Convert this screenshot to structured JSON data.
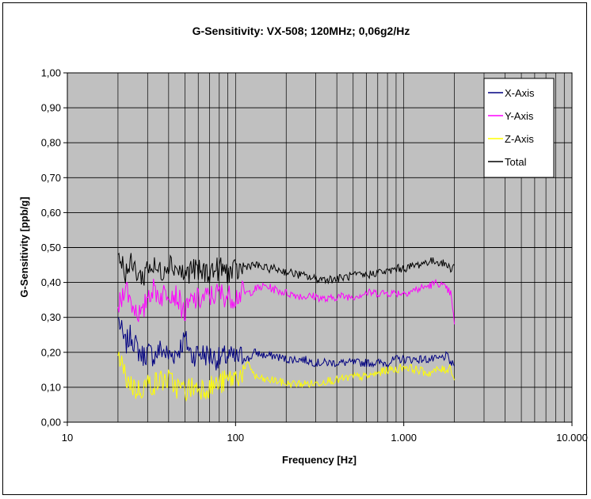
{
  "chart_data": {
    "type": "line",
    "title": "G-Sensitivity:  VX-508;     120MHz;     0,06g2/Hz",
    "xlabel": "Frequency [Hz]",
    "ylabel": "G-Sensitivity  [ppb/g]",
    "x_scale": "log",
    "xlim": [
      10,
      10000
    ],
    "ylim": [
      0,
      1.0
    ],
    "x_ticks": [
      10,
      100,
      1000,
      10000
    ],
    "x_tick_labels": [
      "10",
      "100",
      "1.000",
      "10.000"
    ],
    "y_ticks": [
      0,
      0.1,
      0.2,
      0.3,
      0.4,
      0.5,
      0.6,
      0.7,
      0.8,
      0.9,
      1.0
    ],
    "y_tick_labels": [
      "0,00",
      "0,10",
      "0,20",
      "0,30",
      "0,40",
      "0,50",
      "0,60",
      "0,70",
      "0,80",
      "0,90",
      "1,00"
    ],
    "grid": true,
    "legend_position": "top-right",
    "plot_background": "#c0c0c0",
    "series": [
      {
        "name": "X-Axis",
        "color": "#000080",
        "x": [
          20,
          21,
          22,
          24,
          26,
          28,
          30,
          33,
          36,
          40,
          45,
          50,
          55,
          60,
          70,
          80,
          90,
          100,
          110,
          120,
          130,
          150,
          170,
          200,
          250,
          300,
          350,
          400,
          500,
          600,
          700,
          800,
          900,
          1000,
          1200,
          1400,
          1600,
          1800,
          1900,
          2000
        ],
        "y": [
          0.3,
          0.26,
          0.22,
          0.25,
          0.21,
          0.19,
          0.2,
          0.19,
          0.21,
          0.19,
          0.2,
          0.24,
          0.19,
          0.2,
          0.19,
          0.18,
          0.19,
          0.18,
          0.19,
          0.18,
          0.2,
          0.19,
          0.19,
          0.18,
          0.18,
          0.17,
          0.17,
          0.17,
          0.17,
          0.17,
          0.17,
          0.17,
          0.18,
          0.18,
          0.18,
          0.18,
          0.18,
          0.19,
          0.17,
          0.16
        ]
      },
      {
        "name": "Y-Axis",
        "color": "#ff00ff",
        "x": [
          20,
          21,
          22,
          24,
          26,
          28,
          30,
          33,
          36,
          40,
          45,
          50,
          55,
          60,
          70,
          80,
          90,
          100,
          110,
          120,
          130,
          150,
          170,
          200,
          250,
          300,
          350,
          400,
          500,
          600,
          700,
          800,
          900,
          1000,
          1200,
          1400,
          1600,
          1800,
          1900,
          2000
        ],
        "y": [
          0.33,
          0.35,
          0.4,
          0.34,
          0.32,
          0.3,
          0.37,
          0.38,
          0.36,
          0.38,
          0.36,
          0.31,
          0.35,
          0.35,
          0.36,
          0.37,
          0.36,
          0.36,
          0.37,
          0.37,
          0.38,
          0.39,
          0.38,
          0.37,
          0.36,
          0.36,
          0.35,
          0.36,
          0.36,
          0.37,
          0.37,
          0.37,
          0.37,
          0.37,
          0.38,
          0.39,
          0.4,
          0.38,
          0.37,
          0.28
        ]
      },
      {
        "name": "Z-Axis",
        "color": "#ffff00",
        "x": [
          20,
          21,
          22,
          24,
          26,
          28,
          30,
          33,
          36,
          40,
          45,
          50,
          55,
          60,
          70,
          80,
          90,
          100,
          110,
          120,
          130,
          150,
          170,
          200,
          250,
          300,
          350,
          400,
          500,
          600,
          700,
          800,
          900,
          1000,
          1200,
          1400,
          1600,
          1800,
          1900,
          2000
        ],
        "y": [
          0.19,
          0.17,
          0.13,
          0.11,
          0.09,
          0.1,
          0.11,
          0.11,
          0.12,
          0.12,
          0.1,
          0.09,
          0.1,
          0.1,
          0.1,
          0.11,
          0.12,
          0.13,
          0.14,
          0.17,
          0.13,
          0.12,
          0.12,
          0.11,
          0.11,
          0.11,
          0.12,
          0.12,
          0.13,
          0.13,
          0.14,
          0.15,
          0.15,
          0.16,
          0.15,
          0.14,
          0.15,
          0.15,
          0.16,
          0.12
        ]
      },
      {
        "name": "Total",
        "color": "#000000",
        "x": [
          20,
          21,
          22,
          24,
          26,
          28,
          30,
          33,
          36,
          40,
          45,
          50,
          55,
          60,
          70,
          80,
          90,
          100,
          110,
          120,
          130,
          150,
          170,
          200,
          250,
          300,
          350,
          400,
          500,
          600,
          700,
          800,
          900,
          1000,
          1200,
          1400,
          1600,
          1800,
          1900,
          2000
        ],
        "y": [
          0.48,
          0.46,
          0.43,
          0.45,
          0.43,
          0.41,
          0.45,
          0.44,
          0.43,
          0.46,
          0.44,
          0.42,
          0.44,
          0.43,
          0.43,
          0.44,
          0.43,
          0.43,
          0.44,
          0.45,
          0.45,
          0.44,
          0.44,
          0.43,
          0.42,
          0.41,
          0.41,
          0.41,
          0.42,
          0.42,
          0.43,
          0.43,
          0.44,
          0.44,
          0.45,
          0.46,
          0.46,
          0.45,
          0.44,
          0.45
        ]
      }
    ]
  }
}
